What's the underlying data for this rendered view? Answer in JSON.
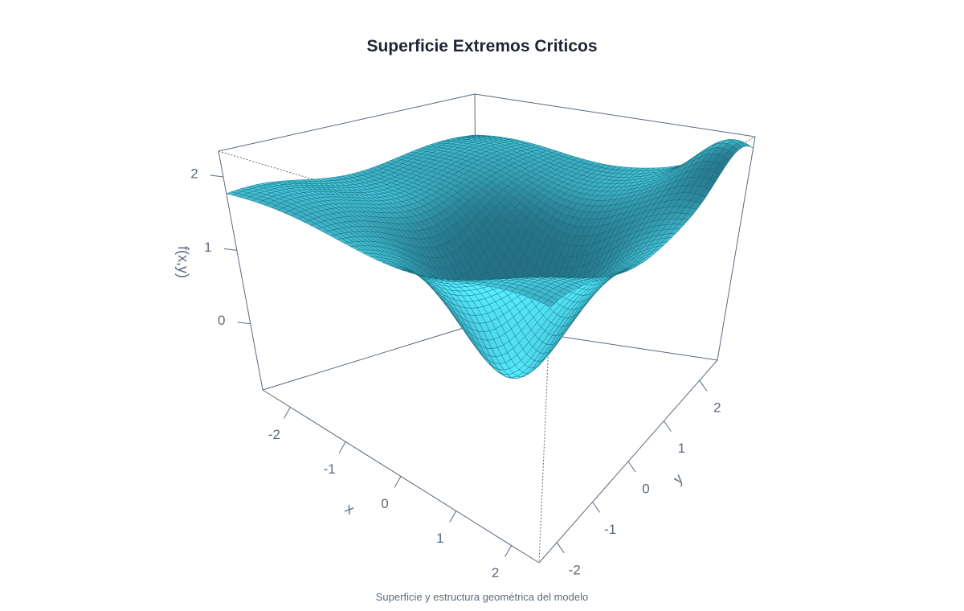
{
  "chart_data": {
    "type": "surface",
    "title": "Superficie Extremos Criticos",
    "caption": "Superficie y estructura geométrica del modelo",
    "xlabel": "x",
    "ylabel": "y",
    "zlabel": "f(x,y)",
    "xlim": [
      -2.5,
      2.5
    ],
    "ylim": [
      -2.5,
      2.5
    ],
    "zlim": [
      -0.9,
      2.35
    ],
    "x_ticks": [
      "-2",
      "-1",
      "0",
      "1",
      "2"
    ],
    "y_ticks": [
      "-2",
      "-1",
      "0",
      "1",
      "2"
    ],
    "z_ticks": [
      "0",
      "1",
      "2"
    ],
    "grid_resolution": 50,
    "surface_description": "smooth bowl with minimum near the front-center and a raised ridge toward the right corner",
    "surface_color": "#2aa6bd",
    "mesh_color": "#0f5f70",
    "box_color": "#5a6a7e"
  }
}
